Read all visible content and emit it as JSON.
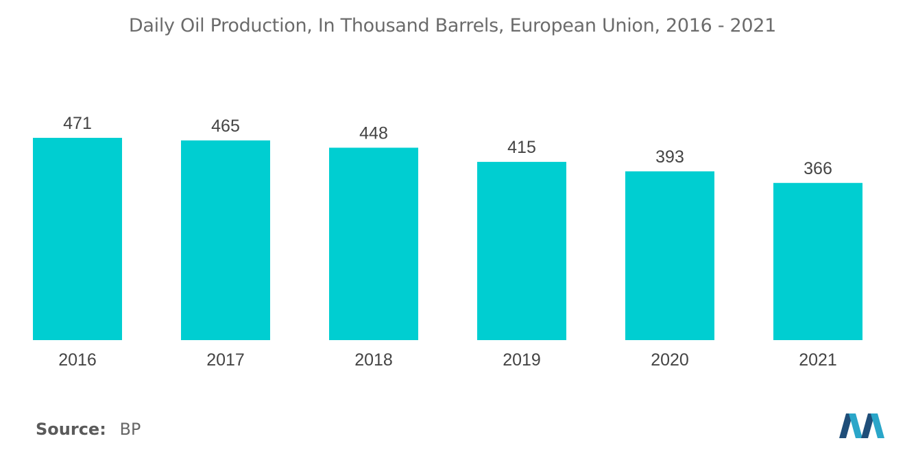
{
  "chart_data": {
    "type": "bar",
    "title": "Daily Oil Production, In Thousand Barrels, European Union, 2016 - 2021",
    "categories": [
      "2016",
      "2017",
      "2018",
      "2019",
      "2020",
      "2021"
    ],
    "values": [
      471,
      465,
      448,
      415,
      393,
      366
    ],
    "xlabel": "",
    "ylabel": "",
    "ylim": [
      0,
      471
    ],
    "grid": false,
    "bar_color": "#00CED1"
  },
  "source": {
    "label": "Source:",
    "value": "BP"
  },
  "logo": {
    "icon": "mordor-intelligence-logo-icon",
    "colors": [
      "#1f4e79",
      "#2aa6c9"
    ]
  }
}
